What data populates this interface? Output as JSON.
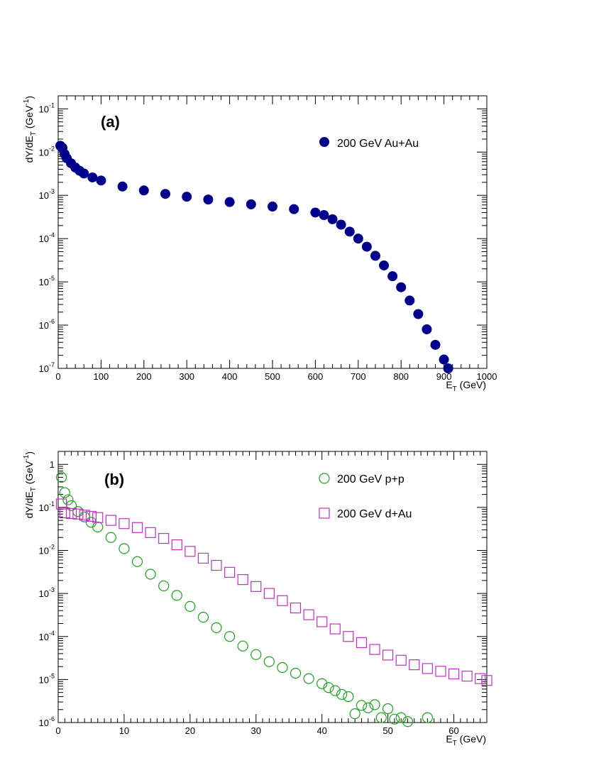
{
  "chart_data": [
    {
      "type": "scatter",
      "panel_label": "(a)",
      "xlabel_main": "E",
      "xlabel_sub": "T",
      "xlabel_unit": " (GeV)",
      "ylabel_main": "dY/dE",
      "ylabel_sub": "T",
      "ylabel_unit_pre": " (GeV",
      "ylabel_unit_sup": "-1",
      "ylabel_unit_post": ")",
      "xlim": [
        0,
        1000
      ],
      "ylim": [
        1e-07,
        0.2
      ],
      "yscale": "log",
      "x_ticks": [
        "0",
        "100",
        "200",
        "300",
        "400",
        "500",
        "600",
        "700",
        "800",
        "900",
        "1000"
      ],
      "y_ticks": [
        {
          "base": "10",
          "exp": "-1"
        },
        {
          "base": "10",
          "exp": "-2"
        },
        {
          "base": "10",
          "exp": "-3"
        },
        {
          "base": "10",
          "exp": "-4"
        },
        {
          "base": "10",
          "exp": "-5"
        },
        {
          "base": "10",
          "exp": "-6"
        },
        {
          "base": "10",
          "exp": "-7"
        }
      ],
      "legend_placement": "top-right",
      "series": [
        {
          "name": "200 GeV Au+Au",
          "marker": "filled-circle",
          "color": "#00008b",
          "x": [
            5,
            10,
            15,
            20,
            30,
            40,
            50,
            60,
            80,
            100,
            150,
            200,
            250,
            300,
            350,
            400,
            450,
            500,
            550,
            600,
            620,
            640,
            660,
            680,
            700,
            720,
            740,
            760,
            780,
            800,
            820,
            840,
            860,
            880,
            900,
            910
          ],
          "y": [
            0.014,
            0.0125,
            0.009,
            0.0072,
            0.0055,
            0.0044,
            0.0037,
            0.0032,
            0.0026,
            0.0022,
            0.0016,
            0.0013,
            0.00108,
            0.00093,
            0.0008,
            0.0007,
            0.00062,
            0.00055,
            0.00048,
            0.0004,
            0.00035,
            0.00028,
            0.00021,
            0.000145,
            0.0001,
            6.5e-05,
            4e-05,
            2.4e-05,
            1.35e-05,
            7.5e-06,
            3.7e-06,
            1.8e-06,
            8e-07,
            3.5e-07,
            1.6e-07,
            1e-07
          ]
        }
      ]
    },
    {
      "type": "scatter",
      "panel_label": "(b)",
      "xlabel_main": "E",
      "xlabel_sub": "T",
      "xlabel_unit": " (GeV)",
      "ylabel_main": "dY/dE",
      "ylabel_sub": "T",
      "ylabel_unit_pre": " (GeV",
      "ylabel_unit_sup": "-1",
      "ylabel_unit_post": ")",
      "xlim": [
        0,
        65
      ],
      "ylim": [
        1e-06,
        2
      ],
      "yscale": "log",
      "x_ticks": [
        "0",
        "10",
        "20",
        "30",
        "40",
        "50",
        "60"
      ],
      "y_ticks": [
        {
          "base": "1",
          "exp": ""
        },
        {
          "base": "10",
          "exp": "-1"
        },
        {
          "base": "10",
          "exp": "-2"
        },
        {
          "base": "10",
          "exp": "-3"
        },
        {
          "base": "10",
          "exp": "-4"
        },
        {
          "base": "10",
          "exp": "-5"
        },
        {
          "base": "10",
          "exp": "-6"
        }
      ],
      "legend_placement": "top-right",
      "series": [
        {
          "name": "200 GeV p+p",
          "marker": "open-circle",
          "color": "#20a020",
          "x": [
            0.5,
            1,
            1.5,
            2,
            3,
            4,
            5,
            6,
            8,
            10,
            12,
            14,
            16,
            18,
            20,
            22,
            24,
            26,
            28,
            30,
            32,
            34,
            36,
            38,
            40,
            41,
            42,
            43,
            44,
            45,
            46,
            47,
            48,
            49,
            50,
            51,
            52,
            53,
            56
          ],
          "y": [
            0.5,
            0.22,
            0.15,
            0.11,
            0.08,
            0.06,
            0.045,
            0.035,
            0.02,
            0.011,
            0.0055,
            0.0028,
            0.0015,
            0.0009,
            0.0005,
            0.00028,
            0.00016,
            0.0001,
            6e-05,
            3.8e-05,
            2.6e-05,
            1.9e-05,
            1.4e-05,
            1.05e-05,
            8e-06,
            6.5e-06,
            5.5e-06,
            4.5e-06,
            4e-06,
            1.6e-06,
            2.5e-06,
            2.2e-06,
            2.6e-06,
            1.3e-06,
            2.1e-06,
            1.2e-06,
            1.3e-06,
            1.05e-06,
            1.3e-06
          ]
        },
        {
          "name": "200 GeV d+Au",
          "marker": "open-square",
          "color": "#c030c0",
          "x": [
            0.5,
            1,
            2,
            3,
            4,
            5,
            6,
            8,
            10,
            12,
            14,
            16,
            18,
            20,
            22,
            24,
            26,
            28,
            30,
            32,
            34,
            36,
            38,
            40,
            42,
            44,
            46,
            48,
            50,
            52,
            54,
            56,
            58,
            60,
            62,
            64,
            65
          ],
          "y": [
            0.12,
            0.075,
            0.072,
            0.07,
            0.066,
            0.062,
            0.058,
            0.05,
            0.042,
            0.034,
            0.026,
            0.019,
            0.0135,
            0.0095,
            0.0066,
            0.0045,
            0.0031,
            0.0021,
            0.00145,
            0.001,
            0.00068,
            0.00046,
            0.00032,
            0.00022,
            0.00015,
            0.0001,
            7.2e-05,
            5e-05,
            3.7e-05,
            2.8e-05,
            2.2e-05,
            1.8e-05,
            1.55e-05,
            1.35e-05,
            1.2e-05,
            1.05e-05,
            9.5e-06
          ]
        }
      ]
    }
  ]
}
